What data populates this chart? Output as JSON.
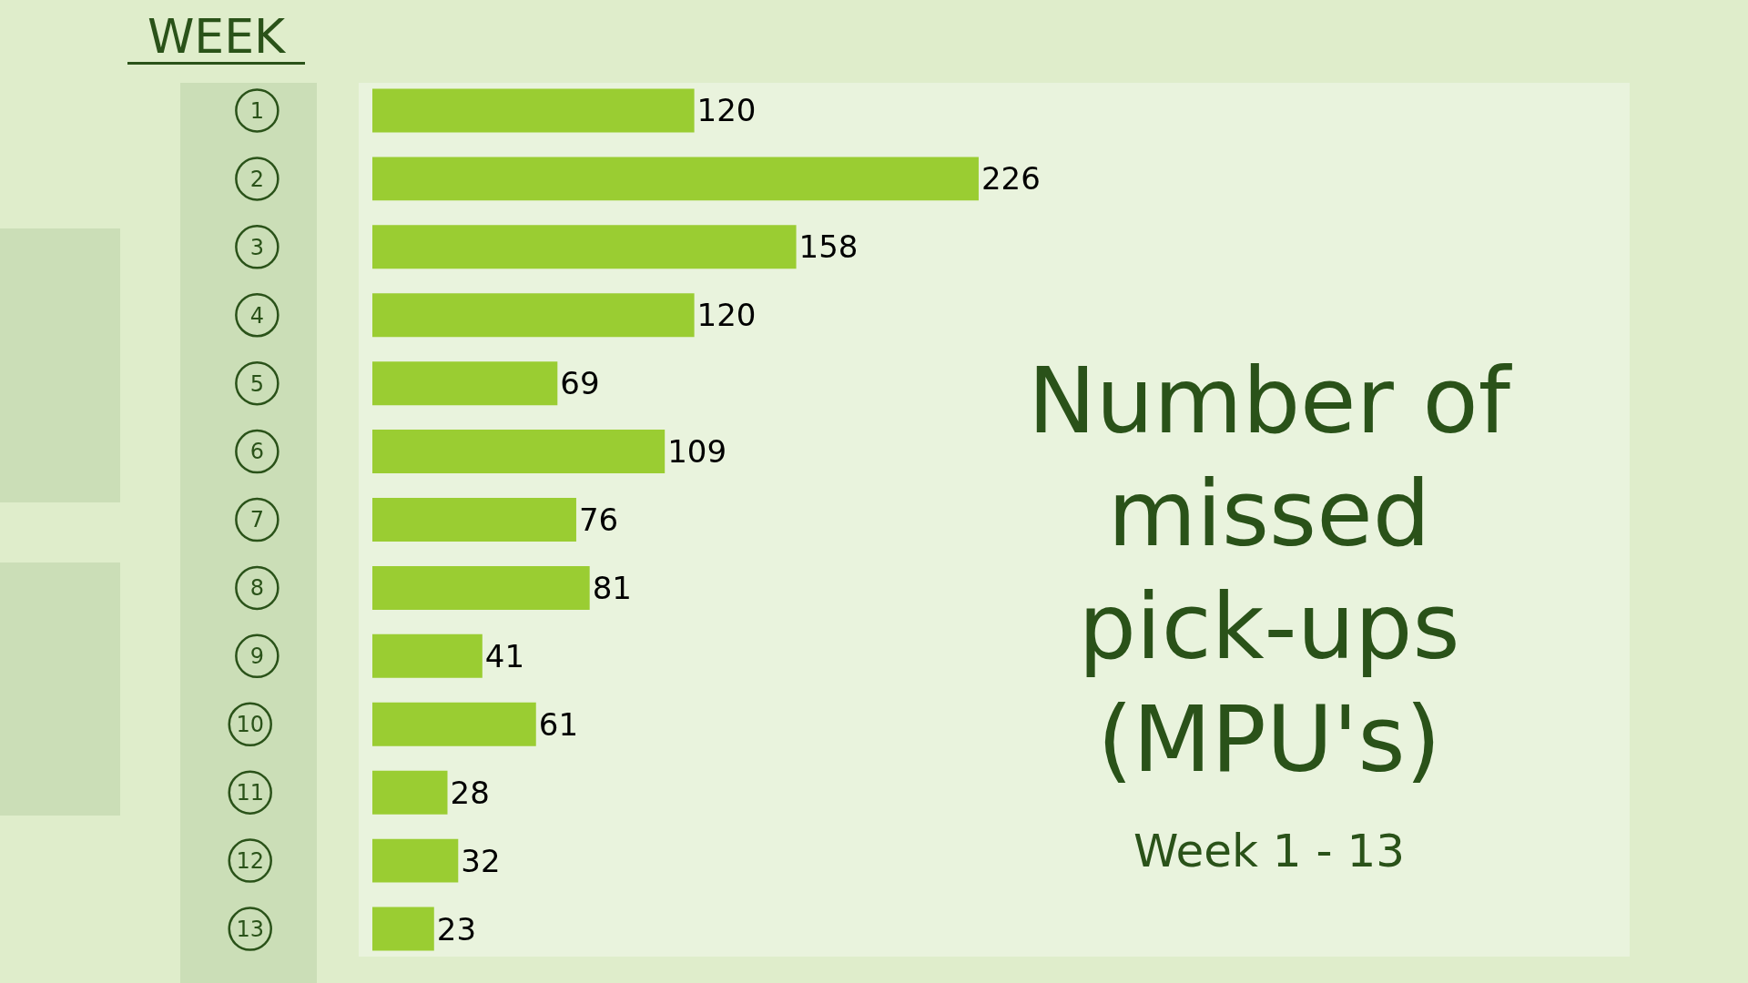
{
  "chart_data": {
    "type": "bar",
    "orientation": "horizontal",
    "title": "Number of missed pick-ups (MPU's)",
    "subtitle": "Week 1 - 13",
    "ylabel": "WEEK",
    "categories": [
      "1",
      "2",
      "3",
      "4",
      "5",
      "6",
      "7",
      "8",
      "9",
      "10",
      "11",
      "12",
      "13"
    ],
    "values": [
      120,
      226,
      158,
      120,
      69,
      109,
      76,
      81,
      41,
      61,
      28,
      32,
      23
    ],
    "color": "#9acd32",
    "data_labels": true
  }
}
